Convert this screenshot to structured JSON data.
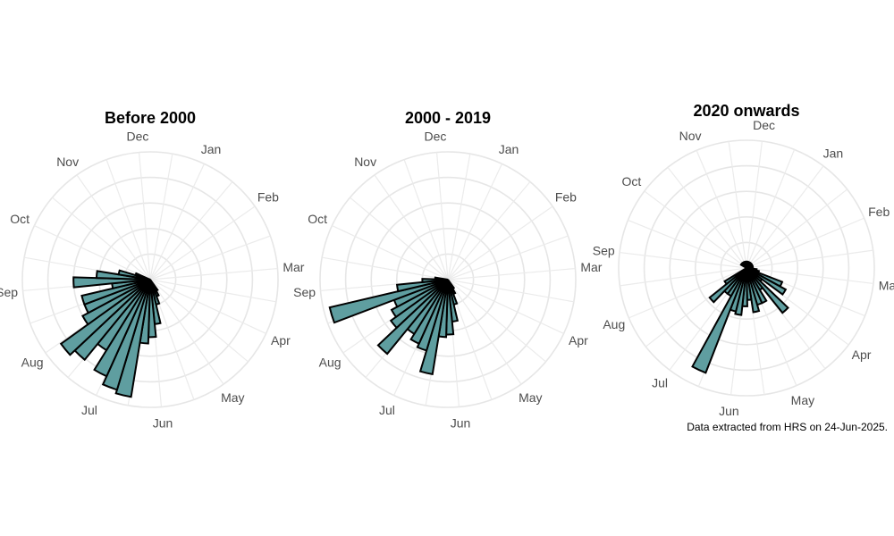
{
  "caption": "Data extracted from HRS on 24-Jun-2025.",
  "colors": {
    "bar_fill": "#5f9ea0",
    "bar_stroke": "#000000",
    "grid": "#e6e6e6",
    "label": "#4d4d4d"
  },
  "chart_data": [
    {
      "type": "polar-bar",
      "title": "Before 2000",
      "categories": [
        "Jan",
        "Feb",
        "Mar",
        "Apr",
        "May",
        "Jun",
        "Jul",
        "Aug",
        "Sep",
        "Oct",
        "Nov",
        "Dec"
      ],
      "rmax": 10,
      "grid": true,
      "bins_description": "weekly bins, angle in months from Jan (1.0 = Feb)",
      "values": [
        {
          "month": 5.1,
          "value": 1.0
        },
        {
          "month": 5.35,
          "value": 1.4
        },
        {
          "month": 5.6,
          "value": 2.0
        },
        {
          "month": 5.85,
          "value": 3.5
        },
        {
          "month": 6.1,
          "value": 4.5
        },
        {
          "month": 6.35,
          "value": 5.0
        },
        {
          "month": 6.6,
          "value": 9.3
        },
        {
          "month": 6.85,
          "value": 9.0
        },
        {
          "month": 7.1,
          "value": 8.3
        },
        {
          "month": 7.35,
          "value": 6.5
        },
        {
          "month": 7.6,
          "value": 8.1
        },
        {
          "month": 7.85,
          "value": 8.6
        },
        {
          "month": 8.1,
          "value": 6.0
        },
        {
          "month": 8.35,
          "value": 5.5
        },
        {
          "month": 8.6,
          "value": 5.5
        },
        {
          "month": 8.85,
          "value": 3.0
        },
        {
          "month": 9.1,
          "value": 6.0
        },
        {
          "month": 9.35,
          "value": 4.2
        },
        {
          "month": 9.6,
          "value": 2.5
        },
        {
          "month": 9.85,
          "value": 1.2
        }
      ]
    },
    {
      "type": "polar-bar",
      "title": "2000 - 2019",
      "categories": [
        "Jan",
        "Feb",
        "Mar",
        "Apr",
        "May",
        "Jun",
        "Jul",
        "Aug",
        "Sep",
        "Oct",
        "Nov",
        "Dec"
      ],
      "rmax": 10,
      "grid": true,
      "bins_description": "weekly bins, angle in months from Jan (1.0 = Feb)",
      "values": [
        {
          "month": 5.1,
          "value": 0.8
        },
        {
          "month": 5.35,
          "value": 1.2
        },
        {
          "month": 5.6,
          "value": 2.0
        },
        {
          "month": 5.85,
          "value": 3.3
        },
        {
          "month": 6.1,
          "value": 4.3
        },
        {
          "month": 6.35,
          "value": 4.5
        },
        {
          "month": 6.6,
          "value": 7.5
        },
        {
          "month": 6.85,
          "value": 5.8
        },
        {
          "month": 7.1,
          "value": 5.5
        },
        {
          "month": 7.35,
          "value": 5.0
        },
        {
          "month": 7.6,
          "value": 7.5
        },
        {
          "month": 7.85,
          "value": 5.5
        },
        {
          "month": 8.1,
          "value": 5.0
        },
        {
          "month": 8.35,
          "value": 4.5
        },
        {
          "month": 8.6,
          "value": 9.5
        },
        {
          "month": 8.85,
          "value": 4.0
        },
        {
          "month": 9.1,
          "value": 2.0
        },
        {
          "month": 9.35,
          "value": 1.0
        }
      ]
    },
    {
      "type": "polar-bar",
      "title": "2020 onwards",
      "categories": [
        "Jan",
        "Feb",
        "Mar",
        "Apr",
        "May",
        "Jun",
        "Jul",
        "Aug",
        "Sep",
        "Oct",
        "Nov",
        "Dec"
      ],
      "rmax": 10,
      "grid": true,
      "bins_description": "weekly bins, angle in months from Jan (1.0 = Feb)",
      "values": [
        {
          "month": 9.9,
          "value": 0.5
        },
        {
          "month": 10.3,
          "value": 0.5
        },
        {
          "month": 10.7,
          "value": 0.5
        },
        {
          "month": 11.1,
          "value": 0.5
        },
        {
          "month": 11.5,
          "value": 0.5
        },
        {
          "month": 11.9,
          "value": 0.5
        },
        {
          "month": 0.3,
          "value": 0.5
        },
        {
          "month": 0.7,
          "value": 0.5
        },
        {
          "month": 1.1,
          "value": 0.5
        },
        {
          "month": 1.5,
          "value": 0.5
        },
        {
          "month": 1.9,
          "value": 0.5
        },
        {
          "month": 2.3,
          "value": 0.5
        },
        {
          "month": 2.7,
          "value": 0.5
        },
        {
          "month": 3.1,
          "value": 0.8
        },
        {
          "month": 3.35,
          "value": 1.0
        },
        {
          "month": 3.6,
          "value": 3.0
        },
        {
          "month": 3.85,
          "value": 3.5
        },
        {
          "month": 4.1,
          "value": 1.5
        },
        {
          "month": 4.35,
          "value": 4.5
        },
        {
          "month": 4.6,
          "value": 2.0
        },
        {
          "month": 4.85,
          "value": 3.0
        },
        {
          "month": 5.1,
          "value": 3.0
        },
        {
          "month": 5.35,
          "value": 3.5
        },
        {
          "month": 5.6,
          "value": 2.5
        },
        {
          "month": 5.85,
          "value": 3.0
        },
        {
          "month": 6.1,
          "value": 3.7
        },
        {
          "month": 6.35,
          "value": 3.5
        },
        {
          "month": 6.6,
          "value": 8.8
        },
        {
          "month": 6.85,
          "value": 2.5
        },
        {
          "month": 7.1,
          "value": 2.5
        },
        {
          "month": 7.35,
          "value": 3.7
        },
        {
          "month": 7.6,
          "value": 2.0
        }
      ]
    }
  ]
}
